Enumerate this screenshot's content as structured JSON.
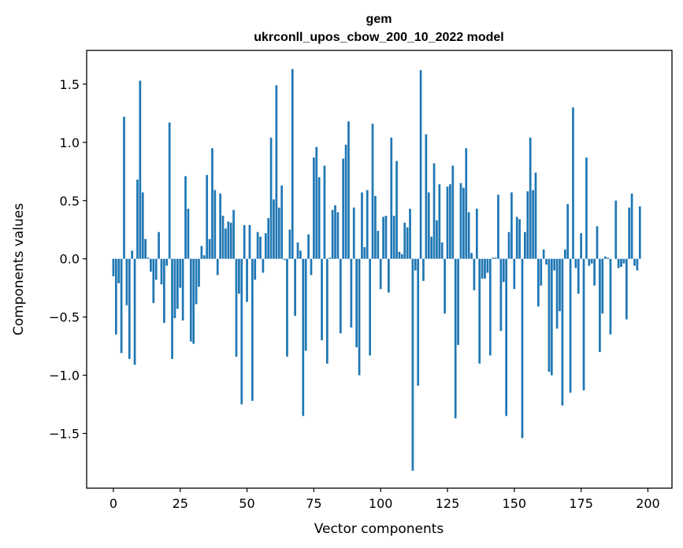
{
  "chart_data": {
    "type": "bar",
    "title_line1": "gem",
    "title_line2": "ukrconll_upos_cbow_200_10_2022 model",
    "xlabel": "Vector components",
    "ylabel": "Components values",
    "xlim": [
      -10,
      209
    ],
    "ylim": [
      -1.97,
      1.79
    ],
    "xticks": [
      0,
      25,
      50,
      75,
      100,
      125,
      150,
      175,
      200
    ],
    "xtick_labels": [
      "0",
      "25",
      "50",
      "75",
      "100",
      "125",
      "150",
      "175",
      "200"
    ],
    "yticks": [
      -1.5,
      -1.0,
      -0.5,
      0.0,
      0.5,
      1.0,
      1.5
    ],
    "ytick_labels": [
      "−1.5",
      "−1.0",
      "−0.5",
      "0.0",
      "0.5",
      "1.0",
      "1.5"
    ],
    "bar_color": "#1f77b4",
    "grid": false,
    "values": [
      -0.15,
      -0.65,
      -0.21,
      -0.81,
      1.22,
      -0.4,
      -0.86,
      0.07,
      -0.91,
      0.68,
      1.53,
      0.57,
      0.17,
      0.01,
      -0.11,
      -0.38,
      -0.18,
      0.23,
      -0.22,
      -0.55,
      -0.06,
      1.17,
      -0.86,
      -0.51,
      -0.43,
      -0.25,
      -0.53,
      0.71,
      0.43,
      -0.71,
      -0.73,
      -0.39,
      -0.24,
      0.11,
      0.03,
      0.72,
      0.17,
      0.95,
      0.59,
      -0.14,
      0.56,
      0.37,
      0.26,
      0.32,
      0.31,
      0.42,
      -0.84,
      -0.3,
      -1.25,
      0.29,
      -0.37,
      0.29,
      -1.22,
      -0.18,
      0.23,
      0.19,
      -0.12,
      0.22,
      0.35,
      1.04,
      0.51,
      1.49,
      0.44,
      0.63,
      -0.01,
      -0.84,
      0.25,
      1.63,
      -0.49,
      0.14,
      0.07,
      -1.35,
      -0.79,
      0.21,
      -0.14,
      0.87,
      0.96,
      0.7,
      -0.7,
      0.8,
      -0.9,
      0.01,
      0.42,
      0.46,
      0.4,
      -0.64,
      0.86,
      0.98,
      1.18,
      -0.59,
      0.44,
      -0.76,
      -1.0,
      0.57,
      0.1,
      0.59,
      -0.83,
      1.16,
      0.54,
      0.24,
      -0.26,
      0.36,
      0.37,
      -0.29,
      1.04,
      0.37,
      0.84,
      0.06,
      0.04,
      0.31,
      0.27,
      0.43,
      -1.82,
      -0.1,
      -1.09,
      1.62,
      -0.19,
      1.07,
      0.57,
      0.19,
      0.82,
      0.33,
      0.64,
      0.14,
      -0.47,
      0.62,
      0.64,
      0.8,
      -1.37,
      -0.74,
      0.65,
      0.61,
      0.95,
      0.4,
      0.05,
      -0.27,
      0.43,
      -0.9,
      -0.17,
      -0.17,
      -0.12,
      -0.83,
      0.01,
      0.01,
      0.55,
      -0.62,
      -0.2,
      -1.35,
      0.23,
      0.57,
      -0.26,
      0.36,
      0.34,
      -1.54,
      0.23,
      0.58,
      1.04,
      0.59,
      0.74,
      -0.41,
      -0.23,
      0.08,
      -0.05,
      -0.97,
      -1.0,
      -0.1,
      -0.6,
      -0.45,
      -1.26,
      0.08,
      0.47,
      -1.15,
      1.3,
      -0.08,
      -0.3,
      0.22,
      -1.13,
      0.87,
      -0.06,
      -0.04,
      -0.23,
      0.28,
      -0.8,
      -0.47,
      0.02,
      0.01,
      -0.65,
      0.0,
      0.5,
      -0.08,
      -0.07,
      -0.04,
      -0.52,
      0.44,
      0.56,
      -0.06,
      -0.1,
      0.45
    ]
  }
}
